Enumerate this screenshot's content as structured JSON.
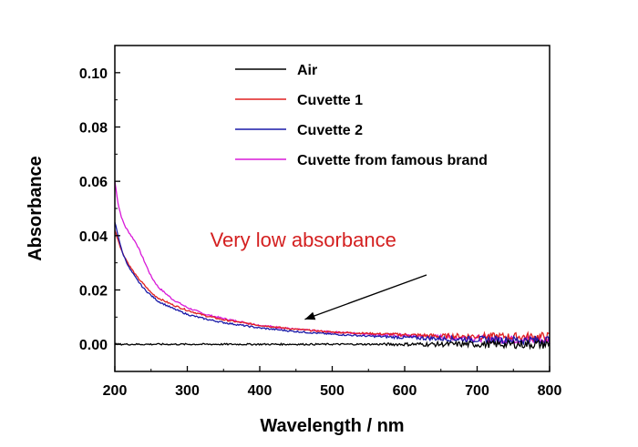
{
  "chart_data": {
    "type": "line",
    "title": "",
    "xlabel": "Wavelength / nm",
    "ylabel": "Absorbance",
    "xlim": [
      200,
      800
    ],
    "ylim": [
      -0.01,
      0.11
    ],
    "xticks": [
      200,
      300,
      400,
      500,
      600,
      700,
      800
    ],
    "yticks": [
      0.0,
      0.02,
      0.04,
      0.06,
      0.08,
      0.1
    ],
    "xtick_labels": [
      "200",
      "300",
      "400",
      "500",
      "600",
      "700",
      "800"
    ],
    "ytick_labels": [
      "0.00",
      "0.02",
      "0.04",
      "0.06",
      "0.08",
      "0.10"
    ],
    "grid": false,
    "legend_position": "top-right",
    "series": [
      {
        "name": "Air",
        "color": "#000000",
        "x": [
          200,
          250,
          300,
          400,
          500,
          600,
          700,
          800
        ],
        "y": [
          0.0,
          0.0,
          0.0,
          0.0,
          0.0,
          0.0,
          0.0,
          0.0
        ]
      },
      {
        "name": "Cuvette 1",
        "color": "#e02020",
        "x": [
          200,
          210,
          220,
          230,
          240,
          250,
          260,
          280,
          300,
          325,
          350,
          375,
          400,
          450,
          500,
          550,
          600,
          650,
          700,
          750,
          800
        ],
        "y": [
          0.042,
          0.034,
          0.029,
          0.025,
          0.022,
          0.019,
          0.017,
          0.0145,
          0.0125,
          0.0105,
          0.009,
          0.008,
          0.007,
          0.0055,
          0.0045,
          0.004,
          0.0035,
          0.003,
          0.003,
          0.0028,
          0.0027
        ]
      },
      {
        "name": "Cuvette 2",
        "color": "#1a1aa8",
        "x": [
          200,
          210,
          220,
          230,
          240,
          250,
          260,
          280,
          300,
          325,
          350,
          375,
          400,
          450,
          500,
          550,
          600,
          650,
          700,
          750,
          800
        ],
        "y": [
          0.045,
          0.034,
          0.028,
          0.024,
          0.0205,
          0.018,
          0.0158,
          0.0132,
          0.011,
          0.0093,
          0.008,
          0.007,
          0.006,
          0.0047,
          0.0037,
          0.003,
          0.0025,
          0.0021,
          0.0018,
          0.0016,
          0.0015
        ]
      },
      {
        "name": "Cuvette from famous brand",
        "color": "#d81ad8",
        "x": [
          200,
          205,
          210,
          215,
          220,
          230,
          240,
          250,
          260,
          280,
          300,
          325,
          350,
          375,
          400,
          450,
          500,
          550,
          600,
          650,
          700,
          750,
          800
        ],
        "y": [
          0.06,
          0.051,
          0.046,
          0.043,
          0.041,
          0.037,
          0.031,
          0.025,
          0.021,
          0.0165,
          0.0135,
          0.011,
          0.0095,
          0.0082,
          0.007,
          0.0055,
          0.0045,
          0.0038,
          0.0032,
          0.0027,
          0.0022,
          0.0018,
          0.0015
        ]
      }
    ],
    "annotations": [
      {
        "text": "Very low absorbance",
        "color": "#d42020",
        "arrow_points_to": [
          510,
          0.0045
        ],
        "text_anchor_data": [
          460,
          0.036
        ]
      }
    ]
  }
}
